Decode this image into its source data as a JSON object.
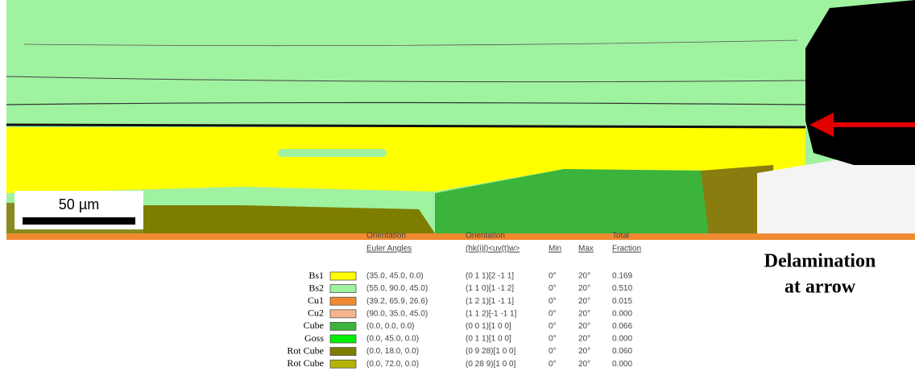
{
  "scale_bar": "50 µm",
  "annotation": [
    "Delamination",
    "at arrow"
  ],
  "legend": {
    "header": [
      [
        "Orientation",
        "Euler Angles"
      ],
      [
        "Orientation",
        "(hk(i)l)<uv(t)w>"
      ],
      [
        "",
        "Min"
      ],
      [
        "",
        "Max"
      ],
      [
        "Total",
        "Fraction"
      ]
    ],
    "rows": [
      {
        "name": "Bs1",
        "color": "#ffff00",
        "euler": "(35.0, 45.0, 0.0)",
        "miller": "(0 1 1)[2 -1 1]",
        "min": "0°",
        "max": "20°",
        "fraction": "0.169"
      },
      {
        "name": "Bs2",
        "color": "#9ff29f",
        "euler": "(55.0, 90.0, 45.0)",
        "miller": "(1 1 0)[1 -1 2]",
        "min": "0°",
        "max": "20°",
        "fraction": "0.510"
      },
      {
        "name": "Cu1",
        "color": "#f08a30",
        "euler": "(39.2, 65.9, 26.6)",
        "miller": "(1 2 1)[1 -1 1]",
        "min": "0°",
        "max": "20°",
        "fraction": "0.015"
      },
      {
        "name": "Cu2",
        "color": "#f5b48c",
        "euler": "(90.0, 35.0, 45.0)",
        "miller": "(1 1 2)[-1 -1 1]",
        "min": "0°",
        "max": "20°",
        "fraction": "0.000"
      },
      {
        "name": "Cube",
        "color": "#3cb43c",
        "euler": "(0.0, 0.0, 0.0)",
        "miller": "(0 0 1)[1 0 0]",
        "min": "0°",
        "max": "20°",
        "fraction": "0.066"
      },
      {
        "name": "Goss",
        "color": "#00ee00",
        "euler": "(0.0, 45.0, 0.0)",
        "miller": "(0 1 1)[1 0 0]",
        "min": "0°",
        "max": "20°",
        "fraction": "0.000"
      },
      {
        "name": "Rot Cube",
        "color": "#7d7d00",
        "euler": "(0.0, 18.0, 0.0)",
        "miller": "(0 9 28)[1 0 0]",
        "min": "0°",
        "max": "20°",
        "fraction": "0.060"
      },
      {
        "name": "Rot Cube",
        "color": "#b4b400",
        "euler": "(0.0, 72.0, 0.0)",
        "miller": "(0 28 9)[1 0 0]",
        "min": "0°",
        "max": "20°",
        "fraction": "0.000"
      }
    ]
  }
}
